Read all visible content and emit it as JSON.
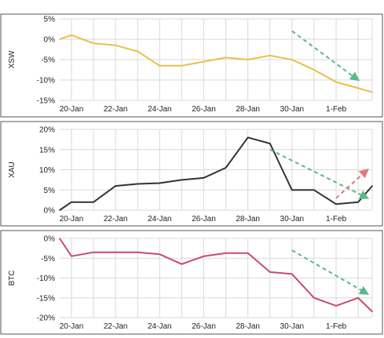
{
  "chart_data": [
    {
      "type": "line",
      "ylabel": "XSW",
      "color": "#e8c04a",
      "x": [
        "19-Jan",
        "20-Jan",
        "21-Jan",
        "22-Jan",
        "23-Jan",
        "24-Jan",
        "25-Jan",
        "26-Jan",
        "27-Jan",
        "28-Jan",
        "29-Jan",
        "30-Jan",
        "31-Jan",
        "1-Feb",
        "2-Feb",
        "3-Feb"
      ],
      "values": [
        0,
        1,
        -1,
        -1.5,
        -3,
        -6.5,
        -6.5,
        -5.5,
        -4.5,
        -5,
        -4,
        -5,
        -7.5,
        -10.5,
        -12,
        -13
      ],
      "ylim": [
        -15,
        5
      ],
      "yticks": [
        "5%",
        "0%",
        "-5%",
        "-10%",
        "-15%"
      ],
      "ytick_values": [
        5,
        0,
        -5,
        -10,
        -15
      ],
      "xticks": [
        "20-Jan",
        "22-Jan",
        "24-Jan",
        "26-Jan",
        "28-Jan",
        "30-Jan",
        "1-Feb"
      ],
      "arrows": [
        {
          "color": "#5bb88a",
          "from": [
            "30-Jan",
            2
          ],
          "to": [
            "2-Feb",
            -10
          ]
        }
      ]
    },
    {
      "type": "line",
      "ylabel": "XAU",
      "color": "#333333",
      "x": [
        "19-Jan",
        "20-Jan",
        "21-Jan",
        "22-Jan",
        "23-Jan",
        "24-Jan",
        "25-Jan",
        "26-Jan",
        "27-Jan",
        "28-Jan",
        "29-Jan",
        "30-Jan",
        "31-Jan",
        "1-Feb",
        "2-Feb",
        "3-Feb"
      ],
      "values": [
        0,
        2,
        2,
        6,
        6.5,
        6.7,
        7.5,
        8,
        10.5,
        18,
        16.5,
        5,
        5,
        1.5,
        2,
        6
      ],
      "ylim": [
        0,
        20
      ],
      "yticks": [
        "20%",
        "15%",
        "10%",
        "5%",
        "0%"
      ],
      "ytick_values": [
        20,
        15,
        10,
        5,
        0
      ],
      "xticks": [
        "20-Jan",
        "22-Jan",
        "24-Jan",
        "26-Jan",
        "28-Jan",
        "30-Jan",
        "1-Feb"
      ],
      "arrows": [
        {
          "color": "#5bb88a",
          "from": [
            "29-Jan",
            15
          ],
          "to": [
            "31-Feb",
            3
          ]
        },
        {
          "color": "#e07a7a",
          "from": [
            "1-Feb",
            3
          ],
          "to": [
            "3-Feb",
            10
          ]
        }
      ]
    },
    {
      "type": "line",
      "ylabel": "BTC",
      "color": "#c94a6a",
      "x": [
        "19-Jan",
        "20-Jan",
        "21-Jan",
        "22-Jan",
        "23-Jan",
        "24-Jan",
        "25-Jan",
        "26-Jan",
        "27-Jan",
        "28-Jan",
        "29-Jan",
        "30-Jan",
        "31-Jan",
        "1-Feb",
        "2-Feb",
        "3-Feb"
      ],
      "values": [
        0,
        -4.5,
        -3.5,
        -3.5,
        -3.5,
        -4,
        -6.5,
        -4.5,
        -3.7,
        -3.7,
        -8.5,
        -9,
        -15,
        -17,
        -15,
        -18.5
      ],
      "ylim": [
        -20,
        0
      ],
      "yticks": [
        "0%",
        "-5%",
        "-10%",
        "-15%",
        "-20%"
      ],
      "ytick_values": [
        0,
        -5,
        -10,
        -15,
        -20
      ],
      "xticks": [
        "20-Jan",
        "22-Jan",
        "24-Jan",
        "26-Jan",
        "28-Jan",
        "30-Jan",
        "1-Feb"
      ],
      "arrows": [
        {
          "color": "#5bb88a",
          "from": [
            "30-Jan",
            -3
          ],
          "to": [
            "3-Feb",
            -14
          ]
        }
      ]
    }
  ]
}
